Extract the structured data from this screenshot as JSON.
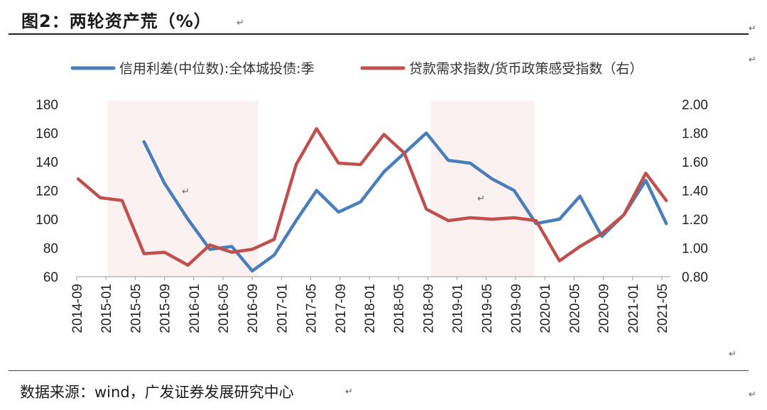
{
  "header": {
    "title": "图2：两轮资产荒（%）"
  },
  "footer": {
    "source": "数据来源：wind，广发证券发展研究中心"
  },
  "chart_data": {
    "type": "line",
    "categories": [
      "2014-09",
      "2015-01",
      "2015-05",
      "2015-09",
      "2016-01",
      "2016-05",
      "2016-09",
      "2017-01",
      "2017-05",
      "2017-09",
      "2018-01",
      "2018-05",
      "2018-09",
      "2019-01",
      "2019-05",
      "2019-09",
      "2020-01",
      "2020-05",
      "2020-09",
      "2021-01",
      "2021-05"
    ],
    "x_ticks": [
      "2014-09",
      "2015-01",
      "2015-05",
      "2015-09",
      "2016-01",
      "2016-05",
      "2016-09",
      "2017-01",
      "2017-05",
      "2017-09",
      "2018-01",
      "2018-05",
      "2018-09",
      "2019-01",
      "2019-05",
      "2019-09",
      "2020-01",
      "2020-05",
      "2020-09",
      "2021-01",
      "2021-05"
    ],
    "y_left": {
      "min": 60,
      "max": 180,
      "step": 20,
      "ticks": [
        "60",
        "80",
        "100",
        "120",
        "140",
        "160",
        "180"
      ]
    },
    "y_right": {
      "min": 0.8,
      "max": 2.0,
      "step": 0.2,
      "ticks": [
        "0.80",
        "1.00",
        "1.20",
        "1.40",
        "1.60",
        "1.80",
        "2.00"
      ]
    },
    "shaded_periods": [
      {
        "from": 1.05,
        "to": 6.2
      },
      {
        "from": 12.1,
        "to": 15.65
      }
    ],
    "series": [
      {
        "name": "信用利差(中位数):全体城投债:季",
        "axis": "left",
        "color": "#4a7ebb",
        "points": [
          [
            2.3,
            154
          ],
          [
            3.0,
            125
          ],
          [
            3.8,
            100
          ],
          [
            4.55,
            79
          ],
          [
            5.3,
            81
          ],
          [
            6.0,
            64
          ],
          [
            6.75,
            75
          ],
          [
            7.5,
            99
          ],
          [
            8.2,
            120
          ],
          [
            8.95,
            105
          ],
          [
            9.7,
            112
          ],
          [
            10.5,
            133
          ],
          [
            11.2,
            146
          ],
          [
            11.95,
            160
          ],
          [
            12.7,
            141
          ],
          [
            13.45,
            139
          ],
          [
            14.2,
            128
          ],
          [
            14.95,
            120
          ],
          [
            15.7,
            97
          ],
          [
            16.5,
            100
          ],
          [
            17.2,
            116
          ],
          [
            17.95,
            88
          ],
          [
            18.7,
            103
          ],
          [
            19.45,
            127
          ],
          [
            20.15,
            97
          ]
        ]
      },
      {
        "name": "贷款需求指数/货币政策感受指数（右）",
        "axis": "right",
        "color": "#c0504d",
        "points": [
          [
            0.05,
            1.48
          ],
          [
            0.8,
            1.35
          ],
          [
            1.55,
            1.33
          ],
          [
            2.3,
            0.96
          ],
          [
            3.0,
            0.97
          ],
          [
            3.8,
            0.88
          ],
          [
            4.55,
            1.02
          ],
          [
            5.3,
            0.97
          ],
          [
            6.0,
            0.99
          ],
          [
            6.75,
            1.06
          ],
          [
            7.5,
            1.58
          ],
          [
            8.2,
            1.83
          ],
          [
            8.95,
            1.59
          ],
          [
            9.7,
            1.58
          ],
          [
            10.5,
            1.79
          ],
          [
            11.2,
            1.66
          ],
          [
            11.95,
            1.27
          ],
          [
            12.7,
            1.19
          ],
          [
            13.45,
            1.21
          ],
          [
            14.2,
            1.2
          ],
          [
            14.95,
            1.21
          ],
          [
            15.7,
            1.19
          ],
          [
            16.5,
            0.91
          ],
          [
            17.2,
            1.01
          ],
          [
            17.95,
            1.1
          ],
          [
            18.7,
            1.23
          ],
          [
            19.45,
            1.52
          ],
          [
            20.15,
            1.33
          ]
        ]
      }
    ]
  }
}
